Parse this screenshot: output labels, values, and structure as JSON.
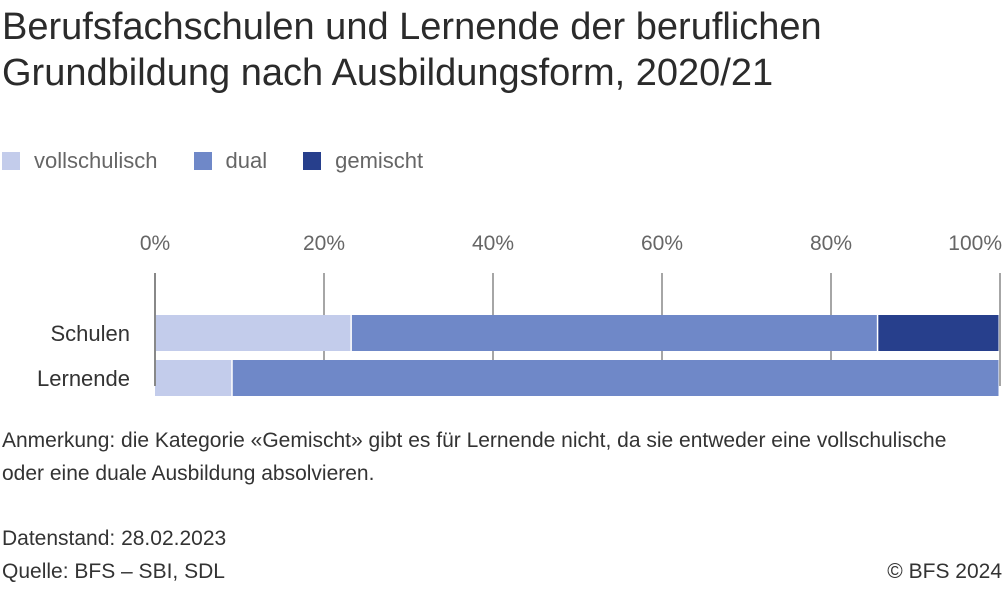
{
  "title": "Berufsfachschulen und Lernende der beruflichen\nGrundbildung nach Ausbildungsform, 2020/21",
  "note": "Anmerkung: die Kategorie «Gemischt» gibt es für Lernende nicht, da sie entweder eine vollschulische oder eine duale Ausbildung absolvieren.",
  "data_status": "Datenstand: 28.02.2023",
  "source": "Quelle: BFS – SBI, SDL",
  "copyright": "© BFS 2024",
  "colors": {
    "vollschulisch": "#c3cceb",
    "dual": "#6f88c8",
    "gemischt": "#273f8c",
    "axis": "#888888",
    "text": "#333333"
  },
  "chart_data": {
    "type": "bar",
    "orientation": "horizontal",
    "stacked": true,
    "categories": [
      "Schulen",
      "Lernende"
    ],
    "series": [
      {
        "name": "vollschulisch",
        "values": [
          23.3,
          9.2
        ]
      },
      {
        "name": "dual",
        "values": [
          62.3,
          90.8
        ]
      },
      {
        "name": "gemischt",
        "values": [
          14.4,
          0
        ]
      }
    ],
    "xlim": [
      0,
      100
    ],
    "x_ticks": [
      "0%",
      "20%",
      "40%",
      "60%",
      "80%",
      "100%"
    ],
    "x_tick_values": [
      0,
      20,
      40,
      60,
      80,
      100
    ],
    "legend_position": "top-left",
    "grid": true,
    "title": "Berufsfachschulen und Lernende der beruflichen Grundbildung nach Ausbildungsform, 2020/21",
    "xlabel": "",
    "ylabel": ""
  }
}
